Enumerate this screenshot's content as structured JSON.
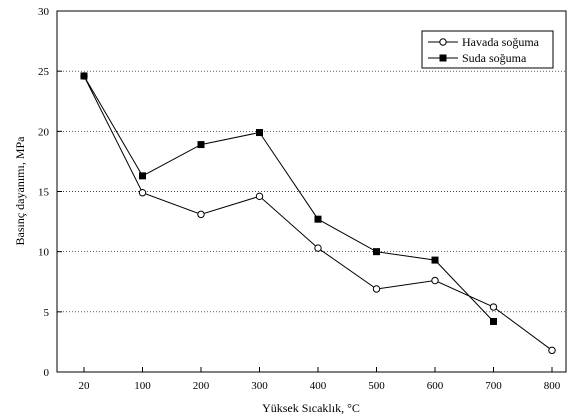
{
  "chart_data": {
    "type": "line",
    "title": "",
    "xlabel": "Yüksek Sıcaklık, °C",
    "ylabel": "Basınç dayanımı, MPa",
    "categories": [
      "20",
      "100",
      "200",
      "300",
      "400",
      "500",
      "600",
      "700",
      "800"
    ],
    "ylim": [
      0,
      30
    ],
    "yticks": [
      "0",
      "5",
      "10",
      "15",
      "20",
      "25",
      "30"
    ],
    "grid": "horizontal dotted",
    "legend_position": "top-right",
    "series": [
      {
        "name": "Havada soğuma",
        "marker": "open-circle",
        "values": [
          24.6,
          14.9,
          13.1,
          14.6,
          10.3,
          6.9,
          7.6,
          5.4,
          1.8
        ]
      },
      {
        "name": "Suda soğuma",
        "marker": "filled-square",
        "values": [
          24.6,
          16.3,
          18.9,
          19.9,
          12.7,
          10.0,
          9.3,
          4.2,
          null
        ]
      }
    ],
    "colors": {
      "line": "#000000",
      "background": "#ffffff"
    }
  }
}
